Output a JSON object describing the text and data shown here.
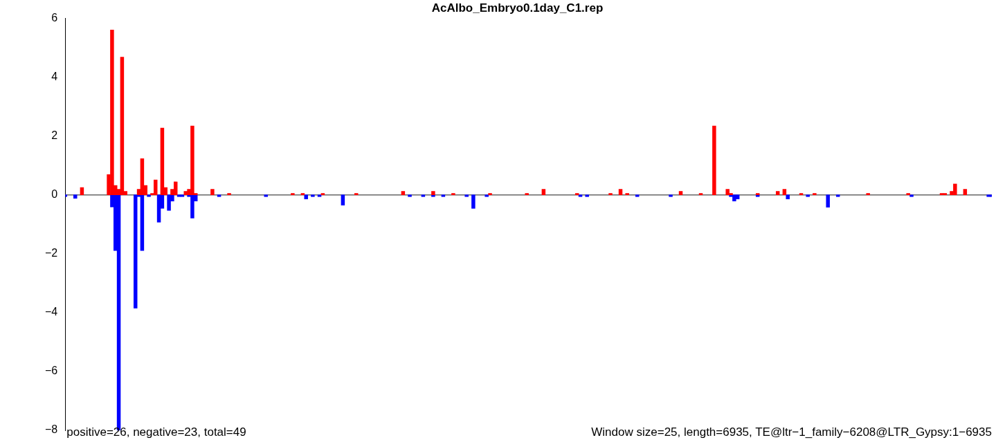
{
  "chart_data": {
    "type": "bar",
    "title": "AcAlbo_Embryo0.1day_C1.rep",
    "stacked": true,
    "grid": false,
    "legend": false,
    "tick_labels": "y",
    "categories": [
      null,
      null,
      null,
      null,
      null,
      null,
      null,
      null,
      null,
      null,
      null,
      null,
      null,
      null,
      null,
      null,
      null,
      null,
      null,
      null,
      null,
      null,
      null,
      null,
      null,
      null,
      null,
      null,
      null,
      null,
      null,
      null,
      null,
      null,
      null,
      null,
      null,
      null,
      null,
      null,
      null,
      null,
      null,
      null,
      null,
      null,
      null,
      null,
      null,
      null,
      null,
      null,
      null,
      null,
      null,
      null,
      null,
      null,
      null,
      null,
      null,
      null,
      null,
      null,
      null,
      null,
      null,
      null,
      null,
      null,
      null,
      null,
      null,
      null,
      null,
      null,
      null,
      null,
      null,
      null,
      null,
      null,
      null,
      null,
      null,
      null,
      null,
      null,
      null,
      null,
      null,
      null,
      null,
      null,
      null,
      null,
      null,
      null,
      null,
      null,
      null,
      null,
      null,
      null,
      null,
      null,
      null,
      null,
      null,
      null,
      null,
      null,
      null,
      null,
      null,
      null,
      null,
      null,
      null,
      null,
      null,
      null,
      null,
      null,
      null,
      null,
      null,
      null,
      null,
      null,
      null,
      null,
      null,
      null,
      null,
      null,
      null,
      null,
      null,
      null,
      null,
      null,
      null,
      null,
      null,
      null,
      null,
      null,
      null,
      null,
      null,
      null,
      null,
      null,
      null,
      null,
      null,
      null,
      null,
      null,
      null,
      null,
      null,
      null,
      null,
      null,
      null,
      null,
      null,
      null,
      null,
      null,
      null,
      null,
      null,
      null,
      null,
      null,
      null,
      null,
      null,
      null,
      null,
      null,
      null,
      null,
      null,
      null,
      null,
      null,
      null,
      null,
      null,
      null,
      null,
      null,
      null,
      null,
      null,
      null,
      null,
      null,
      null,
      null,
      null,
      null,
      null,
      null,
      null,
      null,
      null,
      null,
      null,
      null,
      null,
      null,
      null,
      null,
      null,
      null,
      null,
      null,
      null,
      null,
      null,
      null,
      null,
      null,
      null,
      null,
      null,
      null,
      null,
      null,
      null,
      null,
      null,
      null,
      null,
      null,
      null,
      null,
      null,
      null,
      null,
      null,
      null,
      null,
      null,
      null,
      null,
      null,
      null,
      null,
      null,
      null,
      null,
      null,
      null,
      null,
      null,
      null,
      null,
      null,
      null,
      null,
      null,
      null,
      null,
      null,
      null,
      null,
      null,
      null,
      null,
      null,
      null,
      null
    ],
    "series": [
      {
        "color": "#ff0000",
        "values": [
          null,
          null,
          null,
          null,
          null,
          0.25,
          null,
          null,
          null,
          null,
          null,
          null,
          null,
          0.69,
          5.6,
          0.32,
          0.19,
          4.68,
          0.12,
          null,
          null,
          null,
          0.19,
          1.23,
          0.32,
          null,
          0.05,
          0.51,
          null,
          2.27,
          0.25,
          null,
          0.19,
          0.44,
          null,
          null,
          0.12,
          0.19,
          2.34,
          0.05,
          null,
          null,
          null,
          null,
          0.19,
          null,
          null,
          null,
          null,
          0.05,
          null,
          null,
          null,
          null,
          null,
          null,
          null,
          null,
          null,
          null,
          null,
          null,
          null,
          null,
          null,
          null,
          null,
          null,
          0.05,
          null,
          null,
          0.05,
          null,
          null,
          null,
          null,
          null,
          0.05,
          null,
          null,
          null,
          null,
          null,
          null,
          null,
          null,
          null,
          0.05,
          null,
          null,
          null,
          null,
          null,
          null,
          null,
          null,
          null,
          null,
          null,
          null,
          null,
          0.12,
          null,
          null,
          null,
          null,
          null,
          null,
          null,
          null,
          0.12,
          null,
          null,
          null,
          null,
          null,
          0.05,
          null,
          null,
          null,
          null,
          null,
          null,
          null,
          null,
          null,
          null,
          0.05,
          null,
          null,
          null,
          null,
          null,
          null,
          null,
          null,
          null,
          null,
          0.05,
          null,
          null,
          null,
          null,
          0.19,
          null,
          null,
          null,
          null,
          null,
          null,
          null,
          null,
          null,
          0.05,
          null,
          null,
          null,
          null,
          null,
          null,
          null,
          null,
          null,
          0.05,
          null,
          null,
          0.19,
          null,
          0.05,
          null,
          null,
          null,
          null,
          null,
          null,
          null,
          null,
          null,
          null,
          null,
          null,
          null,
          null,
          null,
          0.12,
          null,
          null,
          null,
          null,
          null,
          0.05,
          null,
          null,
          null,
          2.34,
          null,
          null,
          null,
          0.19,
          0.05,
          null,
          null,
          null,
          null,
          null,
          null,
          null,
          0.05,
          null,
          null,
          null,
          null,
          null,
          0.12,
          null,
          0.19,
          null,
          null,
          null,
          null,
          0.05,
          null,
          null,
          null,
          0.05,
          null,
          null,
          null,
          null,
          null,
          null,
          null,
          null,
          null,
          null,
          null,
          null,
          null,
          null,
          null,
          0.05,
          null,
          null,
          null,
          null,
          null,
          null,
          null,
          null,
          null,
          null,
          null,
          0.05,
          null,
          null,
          null,
          null,
          null,
          null,
          null,
          null,
          null,
          0.05,
          0.05,
          null,
          0.12,
          0.37,
          null,
          null,
          0.19,
          null,
          null,
          null,
          null,
          null,
          null,
          null,
          null
        ]
      },
      {
        "color": "#0000ff",
        "values": [
          -0.06,
          null,
          null,
          -0.12,
          null,
          null,
          null,
          null,
          null,
          null,
          null,
          null,
          null,
          null,
          -0.41,
          -1.89,
          -8,
          null,
          null,
          null,
          null,
          -3.85,
          -0.06,
          -1.89,
          null,
          -0.06,
          null,
          null,
          -0.93,
          -0.46,
          null,
          -0.53,
          -0.21,
          null,
          -0.06,
          -0.06,
          null,
          -0.06,
          -0.79,
          -0.21,
          null,
          null,
          null,
          null,
          null,
          null,
          -0.06,
          null,
          null,
          null,
          null,
          null,
          null,
          null,
          null,
          null,
          null,
          null,
          null,
          null,
          -0.06,
          null,
          null,
          null,
          null,
          null,
          null,
          null,
          null,
          null,
          null,
          null,
          -0.14,
          null,
          -0.06,
          null,
          -0.06,
          null,
          null,
          null,
          null,
          null,
          null,
          -0.35,
          null,
          null,
          null,
          null,
          null,
          null,
          null,
          null,
          null,
          null,
          null,
          null,
          null,
          null,
          null,
          null,
          null,
          null,
          null,
          -0.06,
          null,
          null,
          null,
          -0.06,
          null,
          null,
          -0.06,
          null,
          null,
          -0.06,
          null,
          null,
          null,
          null,
          null,
          null,
          -0.06,
          null,
          -0.46,
          null,
          null,
          null,
          -0.06,
          null,
          null,
          null,
          null,
          null,
          null,
          null,
          null,
          null,
          null,
          null,
          null,
          null,
          null,
          null,
          null,
          null,
          null,
          null,
          null,
          null,
          null,
          null,
          null,
          null,
          null,
          null,
          -0.06,
          null,
          -0.06,
          null,
          null,
          null,
          null,
          null,
          null,
          null,
          null,
          null,
          null,
          null,
          null,
          null,
          null,
          -0.06,
          null,
          null,
          null,
          null,
          null,
          null,
          null,
          null,
          null,
          -0.06,
          null,
          null,
          null,
          null,
          null,
          null,
          null,
          null,
          null,
          null,
          null,
          null,
          null,
          null,
          null,
          null,
          null,
          -0.06,
          -0.21,
          -0.14,
          null,
          null,
          null,
          null,
          null,
          -0.06,
          null,
          null,
          null,
          null,
          null,
          null,
          null,
          null,
          -0.14,
          null,
          null,
          null,
          null,
          null,
          -0.06,
          null,
          null,
          null,
          null,
          null,
          -0.42,
          null,
          null,
          -0.06,
          null,
          null,
          null,
          null,
          null,
          null,
          null,
          null,
          null,
          null,
          null,
          null,
          null,
          null,
          null,
          null,
          null,
          null,
          null,
          null,
          null,
          -0.06,
          null,
          null,
          null,
          null,
          null,
          null,
          null,
          null,
          null,
          null,
          null,
          null,
          null,
          null,
          null,
          null,
          null,
          null,
          null,
          null,
          null,
          null,
          -0.06,
          -0.06
        ]
      }
    ],
    "ylim": [
      -8,
      6
    ],
    "yticks": [
      -8,
      -6,
      -4,
      -2,
      0,
      2,
      4,
      6
    ],
    "ref_lines": [
      {
        "axis": "y",
        "value": 0,
        "color": "#666666"
      }
    ],
    "annotations": [
      "positive=26, negative=23, total=49",
      "Window size=25, length=6935, TE@ltr−1_family−6208@LTR_Gypsy:1−6935"
    ]
  }
}
